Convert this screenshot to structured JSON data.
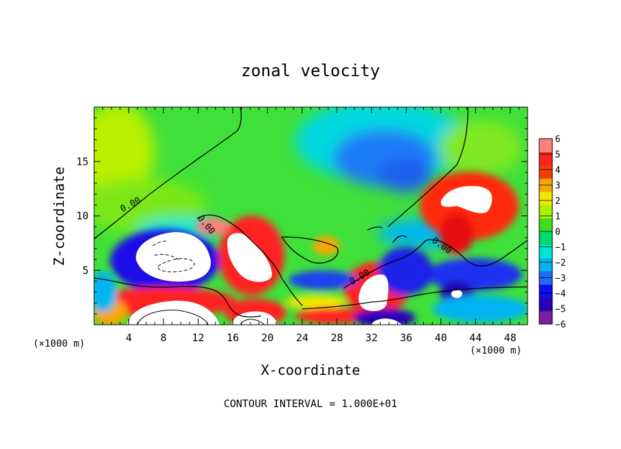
{
  "chart_data": {
    "type": "heatmap",
    "title": "zonal velocity",
    "xlabel": "X-coordinate",
    "ylabel": "Z-coordinate",
    "x_multiplier_label_left": "(×1000 m)",
    "x_multiplier_label_right": "(×1000 m)",
    "xlim": [
      0,
      50
    ],
    "ylim": [
      0,
      20
    ],
    "x_ticks": [
      "4",
      "8",
      "12",
      "16",
      "20",
      "24",
      "28",
      "32",
      "36",
      "40",
      "44",
      "48"
    ],
    "x_tick_values": [
      4,
      8,
      12,
      16,
      20,
      24,
      28,
      32,
      36,
      40,
      44,
      48
    ],
    "y_ticks": [
      "5",
      "10",
      "15"
    ],
    "y_tick_values": [
      5,
      10,
      15
    ],
    "colorbar": {
      "levels": [
        -6,
        -5,
        -4,
        -3,
        -2,
        -1,
        0,
        1,
        2,
        3,
        4,
        5,
        6
      ],
      "labels": [
        "6",
        "5",
        "4",
        "3",
        "2",
        "1",
        "0",
        "−1",
        "−2",
        "−3",
        "−4",
        "−5",
        "−6"
      ],
      "colors": [
        "#7a1fa2",
        "#2a00b8",
        "#0a10f0",
        "#1e6cf5",
        "#00b4f0",
        "#00e6d2",
        "#00dc6e",
        "#3de020",
        "#a8f000",
        "#f0e800",
        "#f5a800",
        "#f04000",
        "#ff2020",
        "#ff8080"
      ]
    },
    "contour_labels": [
      "0.00",
      "0.00",
      "0.00",
      "0.00"
    ],
    "contour_label_values": [
      0,
      0,
      0,
      0
    ],
    "footer": "CONTOUR INTERVAL = 1.000E+01",
    "features": [
      {
        "x": 9,
        "z": 6,
        "value": -7
      },
      {
        "x": 10,
        "z": 1,
        "value": 7
      },
      {
        "x": 18,
        "z": 6,
        "value": 7
      },
      {
        "x": 19,
        "z": 0.5,
        "value": 7
      },
      {
        "x": 33.5,
        "z": 3,
        "value": 7
      },
      {
        "x": 34.5,
        "z": 0.3,
        "value": -7
      },
      {
        "x": 42.5,
        "z": 11,
        "value": 7
      },
      {
        "x": 43,
        "z": 3,
        "value": -4
      },
      {
        "x": 33,
        "z": 15.5,
        "value": -3
      },
      {
        "x": 26,
        "z": 7.2,
        "value": 4
      },
      {
        "x": 21,
        "z": 3.6,
        "value": 3
      },
      {
        "x": 29,
        "z": 2.5,
        "value": 3
      }
    ]
  }
}
